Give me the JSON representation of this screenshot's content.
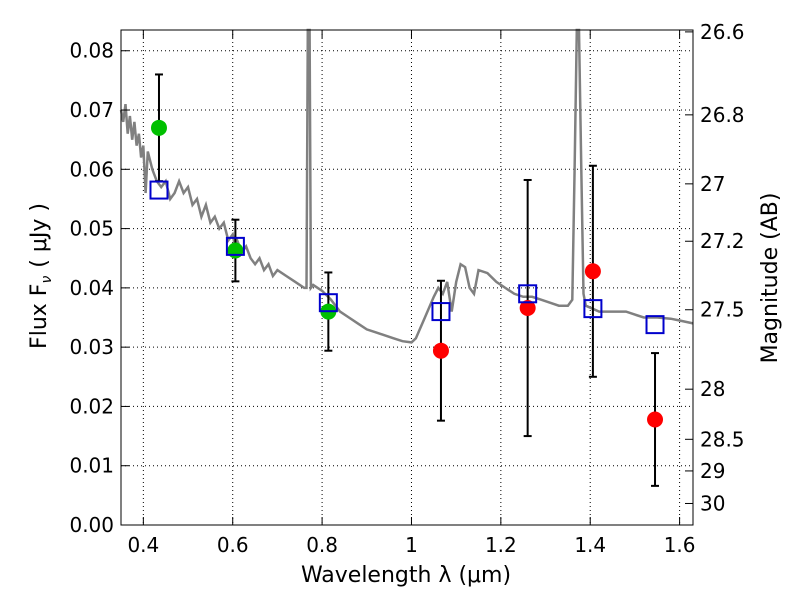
{
  "chart_data": {
    "type": "scatter",
    "xlabel": "Wavelength  λ (μm)",
    "ylabel": "Flux  F",
    "ylabel_sub": "ν",
    "ylabel_unit": "( μJy )",
    "y2label": "Magnitude (AB)",
    "xlim": [
      0.35,
      1.63
    ],
    "ylim": [
      0.0,
      0.0835
    ],
    "grid": true,
    "x_ticks": [
      {
        "value": 0.4,
        "label": "0.4"
      },
      {
        "value": 0.6,
        "label": "0.6"
      },
      {
        "value": 0.8,
        "label": "0.8"
      },
      {
        "value": 1.0,
        "label": "1"
      },
      {
        "value": 1.2,
        "label": "1.2"
      },
      {
        "value": 1.4,
        "label": "1.4"
      },
      {
        "value": 1.6,
        "label": "1.6"
      }
    ],
    "y_ticks": [
      {
        "value": 0.0,
        "label": "0.00"
      },
      {
        "value": 0.01,
        "label": "0.01"
      },
      {
        "value": 0.02,
        "label": "0.02"
      },
      {
        "value": 0.03,
        "label": "0.03"
      },
      {
        "value": 0.04,
        "label": "0.04"
      },
      {
        "value": 0.05,
        "label": "0.05"
      },
      {
        "value": 0.06,
        "label": "0.06"
      },
      {
        "value": 0.07,
        "label": "0.07"
      },
      {
        "value": 0.08,
        "label": "0.08"
      }
    ],
    "y2_ticks": [
      {
        "mag": 26.6,
        "label": "26.6"
      },
      {
        "mag": 26.8,
        "label": "26.8"
      },
      {
        "mag": 27.0,
        "label": "27"
      },
      {
        "mag": 27.2,
        "label": "27.2"
      },
      {
        "mag": 27.5,
        "label": "27.5"
      },
      {
        "mag": 28.0,
        "label": "28"
      },
      {
        "mag": 28.5,
        "label": "28.5"
      },
      {
        "mag": 29.0,
        "label": "29"
      },
      {
        "mag": 30.0,
        "label": "30"
      }
    ],
    "observed_green": [
      {
        "x": 0.435,
        "y": 0.067,
        "err": 0.009
      },
      {
        "x": 0.606,
        "y": 0.0463,
        "err": 0.0052
      },
      {
        "x": 0.814,
        "y": 0.036,
        "err": 0.0066
      }
    ],
    "observed_red": [
      {
        "x": 1.066,
        "y": 0.0294,
        "err": 0.0118
      },
      {
        "x": 1.26,
        "y": 0.0366,
        "err": 0.0216
      },
      {
        "x": 1.406,
        "y": 0.0428,
        "err": 0.0178
      },
      {
        "x": 1.545,
        "y": 0.0178,
        "err": 0.0112
      }
    ],
    "model_squares": [
      {
        "x": 0.435,
        "y": 0.0565
      },
      {
        "x": 0.606,
        "y": 0.047
      },
      {
        "x": 0.814,
        "y": 0.0375
      },
      {
        "x": 1.066,
        "y": 0.036
      },
      {
        "x": 1.26,
        "y": 0.039
      },
      {
        "x": 1.406,
        "y": 0.0365
      },
      {
        "x": 1.545,
        "y": 0.0338
      }
    ],
    "sed_model": [
      [
        0.35,
        0.07
      ],
      [
        0.355,
        0.068
      ],
      [
        0.36,
        0.071
      ],
      [
        0.365,
        0.066
      ],
      [
        0.37,
        0.069
      ],
      [
        0.375,
        0.065
      ],
      [
        0.38,
        0.068
      ],
      [
        0.385,
        0.064
      ],
      [
        0.39,
        0.066
      ],
      [
        0.395,
        0.062
      ],
      [
        0.4,
        0.064
      ],
      [
        0.405,
        0.056
      ],
      [
        0.41,
        0.063
      ],
      [
        0.42,
        0.06
      ],
      [
        0.43,
        0.058
      ],
      [
        0.44,
        0.057
      ],
      [
        0.45,
        0.058
      ],
      [
        0.46,
        0.055
      ],
      [
        0.47,
        0.056
      ],
      [
        0.48,
        0.058
      ],
      [
        0.49,
        0.056
      ],
      [
        0.5,
        0.057
      ],
      [
        0.51,
        0.054
      ],
      [
        0.52,
        0.055
      ],
      [
        0.53,
        0.052
      ],
      [
        0.54,
        0.054
      ],
      [
        0.55,
        0.051
      ],
      [
        0.56,
        0.052
      ],
      [
        0.57,
        0.05
      ],
      [
        0.58,
        0.051
      ],
      [
        0.59,
        0.048
      ],
      [
        0.6,
        0.049
      ],
      [
        0.605,
        0.047
      ],
      [
        0.61,
        0.048
      ],
      [
        0.62,
        0.046
      ],
      [
        0.63,
        0.047
      ],
      [
        0.64,
        0.045
      ],
      [
        0.65,
        0.044
      ],
      [
        0.66,
        0.045
      ],
      [
        0.67,
        0.043
      ],
      [
        0.68,
        0.044
      ],
      [
        0.69,
        0.042
      ],
      [
        0.7,
        0.043
      ],
      [
        0.72,
        0.042
      ],
      [
        0.74,
        0.041
      ],
      [
        0.76,
        0.04
      ],
      [
        0.765,
        0.04
      ],
      [
        0.768,
        0.084
      ],
      [
        0.772,
        0.084
      ],
      [
        0.775,
        0.04
      ],
      [
        0.78,
        0.0405
      ],
      [
        0.8,
        0.0395
      ],
      [
        0.82,
        0.038
      ],
      [
        0.84,
        0.036
      ],
      [
        0.86,
        0.035
      ],
      [
        0.88,
        0.034
      ],
      [
        0.9,
        0.033
      ],
      [
        0.92,
        0.0325
      ],
      [
        0.94,
        0.032
      ],
      [
        0.96,
        0.0315
      ],
      [
        0.98,
        0.031
      ],
      [
        1.0,
        0.0308
      ],
      [
        1.01,
        0.0315
      ],
      [
        1.03,
        0.035
      ],
      [
        1.05,
        0.0385
      ],
      [
        1.06,
        0.04
      ],
      [
        1.07,
        0.039
      ],
      [
        1.08,
        0.041
      ],
      [
        1.09,
        0.036
      ],
      [
        1.1,
        0.041
      ],
      [
        1.11,
        0.044
      ],
      [
        1.12,
        0.0435
      ],
      [
        1.13,
        0.04
      ],
      [
        1.14,
        0.039
      ],
      [
        1.15,
        0.043
      ],
      [
        1.17,
        0.0425
      ],
      [
        1.19,
        0.041
      ],
      [
        1.21,
        0.04
      ],
      [
        1.23,
        0.039
      ],
      [
        1.25,
        0.0385
      ],
      [
        1.27,
        0.0385
      ],
      [
        1.29,
        0.038
      ],
      [
        1.31,
        0.0375
      ],
      [
        1.33,
        0.037
      ],
      [
        1.35,
        0.037
      ],
      [
        1.36,
        0.038
      ],
      [
        1.365,
        0.06
      ],
      [
        1.37,
        0.084
      ],
      [
        1.375,
        0.084
      ],
      [
        1.38,
        0.06
      ],
      [
        1.385,
        0.039
      ],
      [
        1.39,
        0.037
      ],
      [
        1.42,
        0.036
      ],
      [
        1.45,
        0.036
      ],
      [
        1.48,
        0.036
      ],
      [
        1.5,
        0.0355
      ],
      [
        1.52,
        0.035
      ],
      [
        1.55,
        0.035
      ],
      [
        1.58,
        0.0348
      ],
      [
        1.6,
        0.0345
      ],
      [
        1.63,
        0.034
      ]
    ],
    "colors": {
      "model_line": "#808080",
      "green_points": "#00c000",
      "red_points": "#ff0000",
      "squares": "#0000cc",
      "errorbars": "#000000"
    }
  }
}
